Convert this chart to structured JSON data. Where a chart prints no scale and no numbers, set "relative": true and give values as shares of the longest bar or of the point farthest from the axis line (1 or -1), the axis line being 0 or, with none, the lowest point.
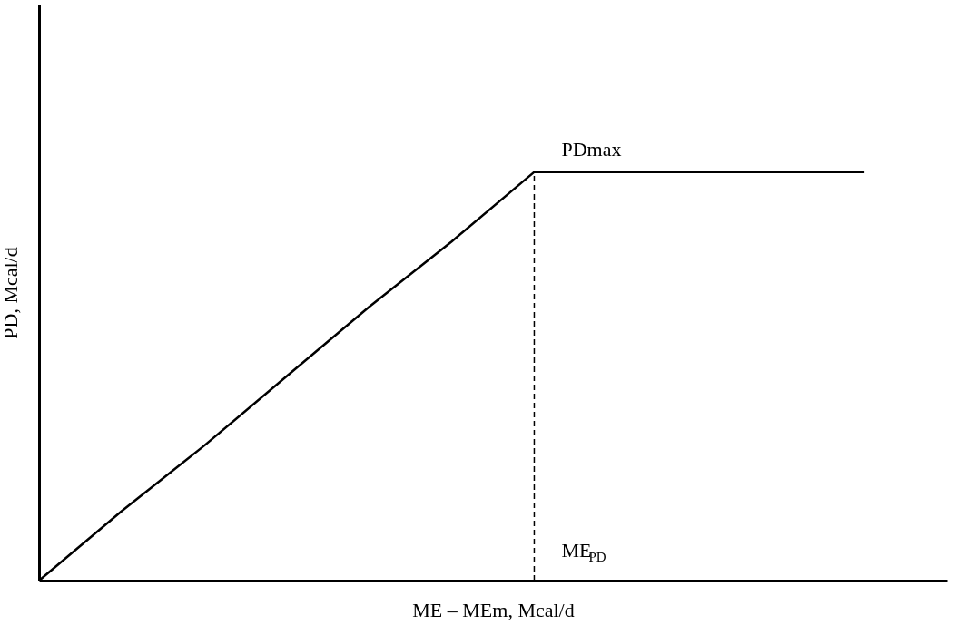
{
  "chart_data": {
    "type": "line",
    "relative": true,
    "xlabel": "ME – MEm, Mcal/d",
    "ylabel": "PD, Mcal/d",
    "categories": [
      null,
      null,
      null,
      null,
      null,
      null,
      null,
      null,
      null,
      null,
      null
    ],
    "series": [
      {
        "color": "#000000",
        "values": [
          0,
          0.17,
          0.33,
          0.5,
          0.67,
          0.83,
          1,
          1,
          1,
          1,
          1
        ]
      }
    ],
    "annotations": [
      "PDmax",
      "ME$_{PD}$"
    ],
    "grid": false,
    "marker": "none",
    "line_style": "solid"
  }
}
